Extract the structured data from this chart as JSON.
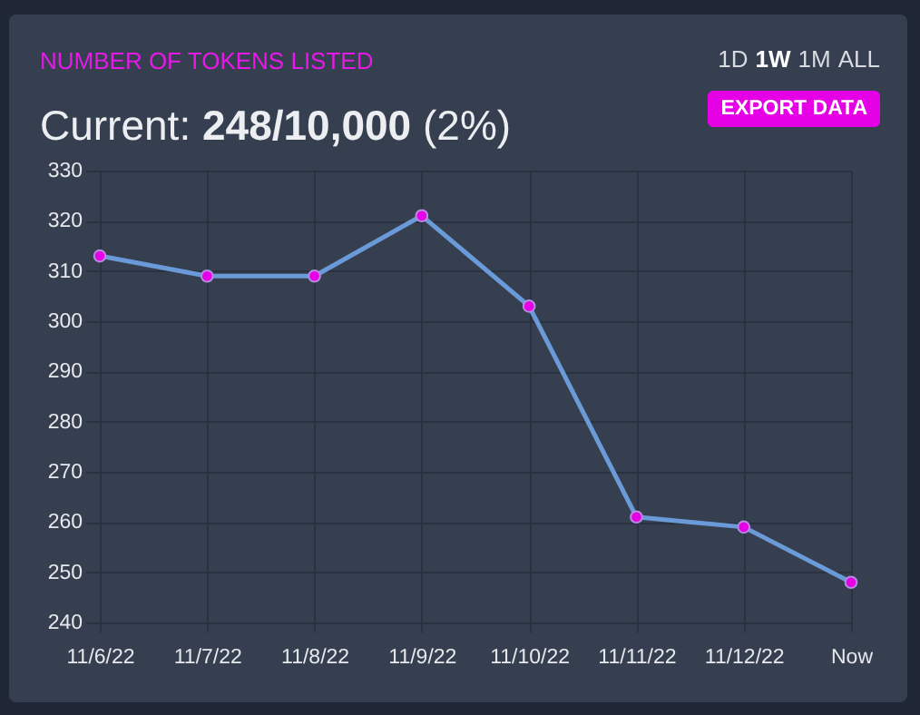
{
  "chart_data": {
    "type": "line",
    "title": "NUMBER OF TOKENS LISTED",
    "subtitle": "Current: 248/10,000 (2%)",
    "annotations": [
      "1D",
      "1W",
      "1M",
      "ALL",
      "EXPORT DATA"
    ],
    "categories": [
      "11/6/22",
      "11/7/22",
      "11/8/22",
      "11/9/22",
      "11/10/22",
      "11/11/22",
      "11/12/22",
      "Now"
    ],
    "series": [
      {
        "color": "#6a9bd8",
        "values": [
          313,
          309,
          309,
          321,
          303,
          261,
          259,
          248
        ]
      }
    ],
    "ylim": [
      240,
      330
    ],
    "yticks": [
      240,
      250,
      260,
      270,
      280,
      290,
      300,
      310,
      320,
      330
    ],
    "grid": true,
    "legend": false,
    "marker": "circle"
  }
}
